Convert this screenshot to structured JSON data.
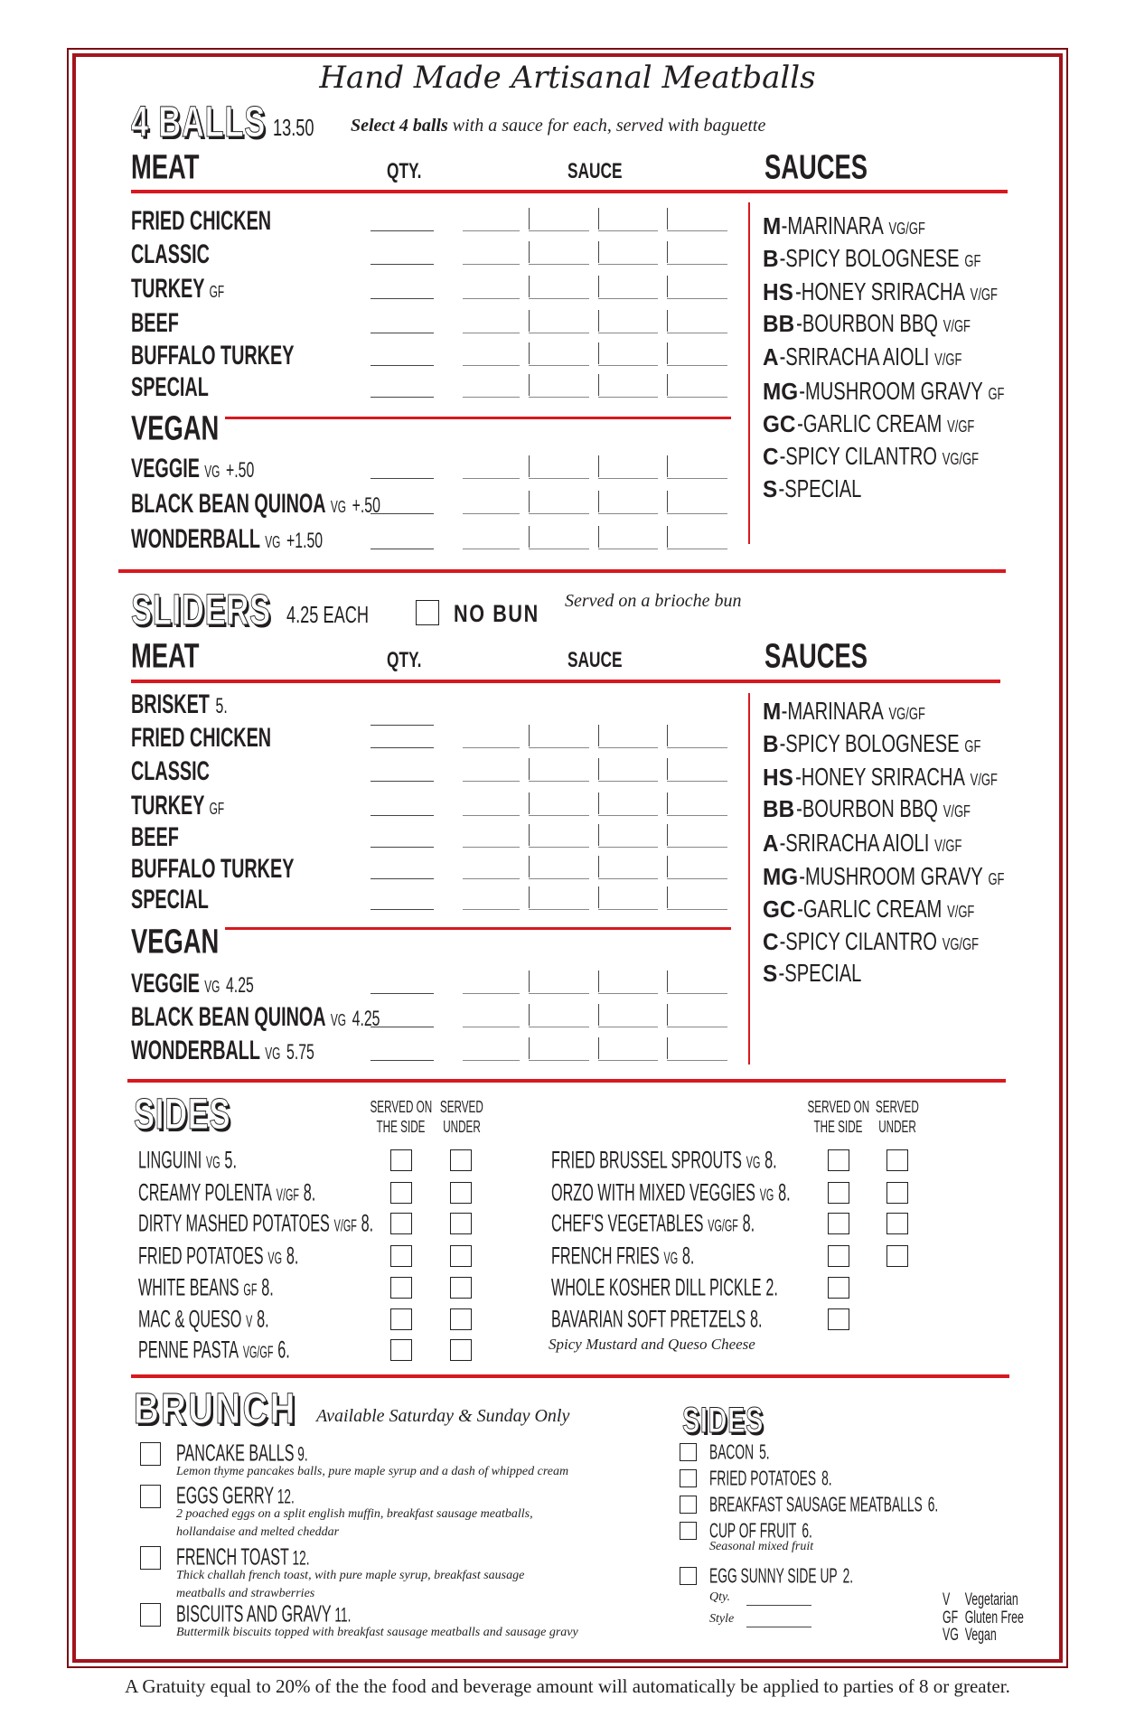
{
  "title": "Hand Made Artisanal Meatballs",
  "colors": {
    "accent_red": "#d7191f",
    "border": "#7a0e14",
    "text": "#231f20"
  },
  "balls": {
    "heading": "4 BALLS",
    "price": "13.50",
    "note_bold": "Select 4 balls",
    "note_rest": " with a sauce for each, served with baguette",
    "meat_label": "MEAT",
    "qty_label": "QTY.",
    "sauce_label": "SAUCE",
    "sauces_label": "SAUCES",
    "vegan_label": "VEGAN",
    "meat": [
      {
        "name": "FRIED CHICKEN",
        "tag": "",
        "price": ""
      },
      {
        "name": "CLASSIC",
        "tag": "",
        "price": ""
      },
      {
        "name": "TURKEY",
        "tag": "GF",
        "price": ""
      },
      {
        "name": "BEEF",
        "tag": "",
        "price": ""
      },
      {
        "name": "BUFFALO TURKEY",
        "tag": "",
        "price": ""
      },
      {
        "name": "SPECIAL",
        "tag": "",
        "price": ""
      }
    ],
    "vegan": [
      {
        "name": "VEGGIE",
        "tag": "VG",
        "price": "+.50"
      },
      {
        "name": "BLACK BEAN QUINOA",
        "tag": "VG",
        "price": "+.50"
      },
      {
        "name": "WONDERBALL",
        "tag": "VG",
        "price": "+1.50"
      }
    ]
  },
  "sauces": [
    {
      "code": "M",
      "name": "-MARINARA",
      "tag": "VG/GF"
    },
    {
      "code": "B",
      "name": "-SPICY BOLOGNESE",
      "tag": "GF"
    },
    {
      "code": "HS",
      "name": "-HONEY SRIRACHA",
      "tag": "V/GF"
    },
    {
      "code": "BB",
      "name": "-BOURBON BBQ",
      "tag": "V/GF"
    },
    {
      "code": "A",
      "name": "-SRIRACHA AIOLI",
      "tag": "V/GF"
    },
    {
      "code": "MG",
      "name": "-MUSHROOM GRAVY",
      "tag": "GF"
    },
    {
      "code": "GC",
      "name": "-GARLIC CREAM",
      "tag": "V/GF"
    },
    {
      "code": "C",
      "name": "-SPICY CILANTRO",
      "tag": "VG/GF"
    },
    {
      "code": "S",
      "name": "-SPECIAL",
      "tag": ""
    }
  ],
  "sliders": {
    "heading": "SLIDERS",
    "price": "4.25 EACH",
    "no_bun": "NO BUN",
    "note": "Served on a brioche bun",
    "meat_label": "MEAT",
    "qty_label": "QTY.",
    "sauce_label": "SAUCE",
    "sauces_label": "SAUCES",
    "vegan_label": "VEGAN",
    "meat": [
      {
        "name": "BRISKET",
        "tag": "",
        "price": "5."
      },
      {
        "name": "FRIED CHICKEN",
        "tag": "",
        "price": ""
      },
      {
        "name": "CLASSIC",
        "tag": "",
        "price": ""
      },
      {
        "name": "TURKEY",
        "tag": "GF",
        "price": ""
      },
      {
        "name": "BEEF",
        "tag": "",
        "price": ""
      },
      {
        "name": "BUFFALO TURKEY",
        "tag": "",
        "price": ""
      },
      {
        "name": "SPECIAL",
        "tag": "",
        "price": ""
      }
    ],
    "vegan": [
      {
        "name": "VEGGIE",
        "tag": "VG",
        "price": "4.25"
      },
      {
        "name": "BLACK BEAN QUINOA",
        "tag": "VG",
        "price": "4.25"
      },
      {
        "name": "WONDERBALL",
        "tag": "VG",
        "price": "5.75"
      }
    ]
  },
  "sides": {
    "heading": "SIDES",
    "served_side": [
      "SERVED ON",
      "THE SIDE"
    ],
    "served_under": [
      "SERVED",
      "UNDER"
    ],
    "left": [
      {
        "name": "LINGUINI",
        "tag": "VG",
        "price": "5.",
        "under": true
      },
      {
        "name": "CREAMY POLENTA",
        "tag": "V/GF",
        "price": "8.",
        "under": true
      },
      {
        "name": "DIRTY MASHED POTATOES",
        "tag": "V/GF",
        "price": "8.",
        "under": true
      },
      {
        "name": "FRIED POTATOES",
        "tag": "VG",
        "price": "8.",
        "under": true
      },
      {
        "name": "WHITE BEANS",
        "tag": "GF",
        "price": "8.",
        "under": true
      },
      {
        "name": "MAC & QUESO",
        "tag": "V",
        "price": "8.",
        "under": true
      },
      {
        "name": "PENNE PASTA",
        "tag": "VG/GF",
        "price": "6.",
        "under": true
      }
    ],
    "right": [
      {
        "name": "FRIED BRUSSEL SPROUTS",
        "tag": "VG",
        "price": "8.",
        "under": true
      },
      {
        "name": "ORZO WITH MIXED VEGGIES",
        "tag": "VG",
        "price": "8.",
        "under": true
      },
      {
        "name": "CHEF'S VEGETABLES",
        "tag": "VG/GF",
        "price": "8.",
        "under": true
      },
      {
        "name": "FRENCH FRIES",
        "tag": "VG",
        "price": "8.",
        "under": true
      },
      {
        "name": "WHOLE KOSHER DILL PICKLE",
        "tag": "",
        "price": "2.",
        "under": false
      },
      {
        "name": "BAVARIAN SOFT PRETZELS",
        "tag": "",
        "price": "8.",
        "under": false
      }
    ],
    "pretzel_note": "Spicy Mustard and Queso Cheese"
  },
  "brunch": {
    "heading": "BRUNCH",
    "note": "Available Saturday & Sunday Only",
    "items": [
      {
        "name": "PANCAKE BALLS",
        "price": "9.",
        "desc": [
          "Lemon thyme pancakes balls, pure maple syrup and a dash of whipped cream"
        ]
      },
      {
        "name": "EGGS GERRY",
        "price": "12.",
        "desc": [
          "2 poached eggs on a split english muffin, breakfast sausage meatballs,",
          "hollandaise and melted cheddar"
        ]
      },
      {
        "name": "FRENCH TOAST",
        "price": "12.",
        "desc": [
          "Thick challah french toast, with pure maple syrup, breakfast sausage",
          "meatballs and strawberries"
        ]
      },
      {
        "name": "BISCUITS AND GRAVY",
        "price": "11.",
        "desc": [
          "Buttermilk biscuits topped with breakfast sausage meatballs and sausage gravy"
        ]
      }
    ],
    "sides_heading": "SIDES",
    "sides": [
      {
        "name": "BACON",
        "price": "5.",
        "desc": ""
      },
      {
        "name": "FRIED POTATOES",
        "price": "8.",
        "desc": ""
      },
      {
        "name": "BREAKFAST SAUSAGE MEATBALLS",
        "price": "6.",
        "desc": ""
      },
      {
        "name": "CUP OF FRUIT",
        "price": "6.",
        "desc": "Seasonal mixed fruit"
      },
      {
        "name": "EGG SUNNY SIDE UP",
        "price": "2.",
        "desc": ""
      }
    ],
    "qty_label": "Qty.",
    "style_label": "Style"
  },
  "legend": [
    {
      "code": "V",
      "meaning": "Vegetarian"
    },
    {
      "code": "GF",
      "meaning": "Gluten Free"
    },
    {
      "code": "VG",
      "meaning": "Vegan"
    }
  ],
  "gratuity": "A Gratuity equal to 20% of the the food and beverage amount will automatically be applied to parties of 8 or greater."
}
